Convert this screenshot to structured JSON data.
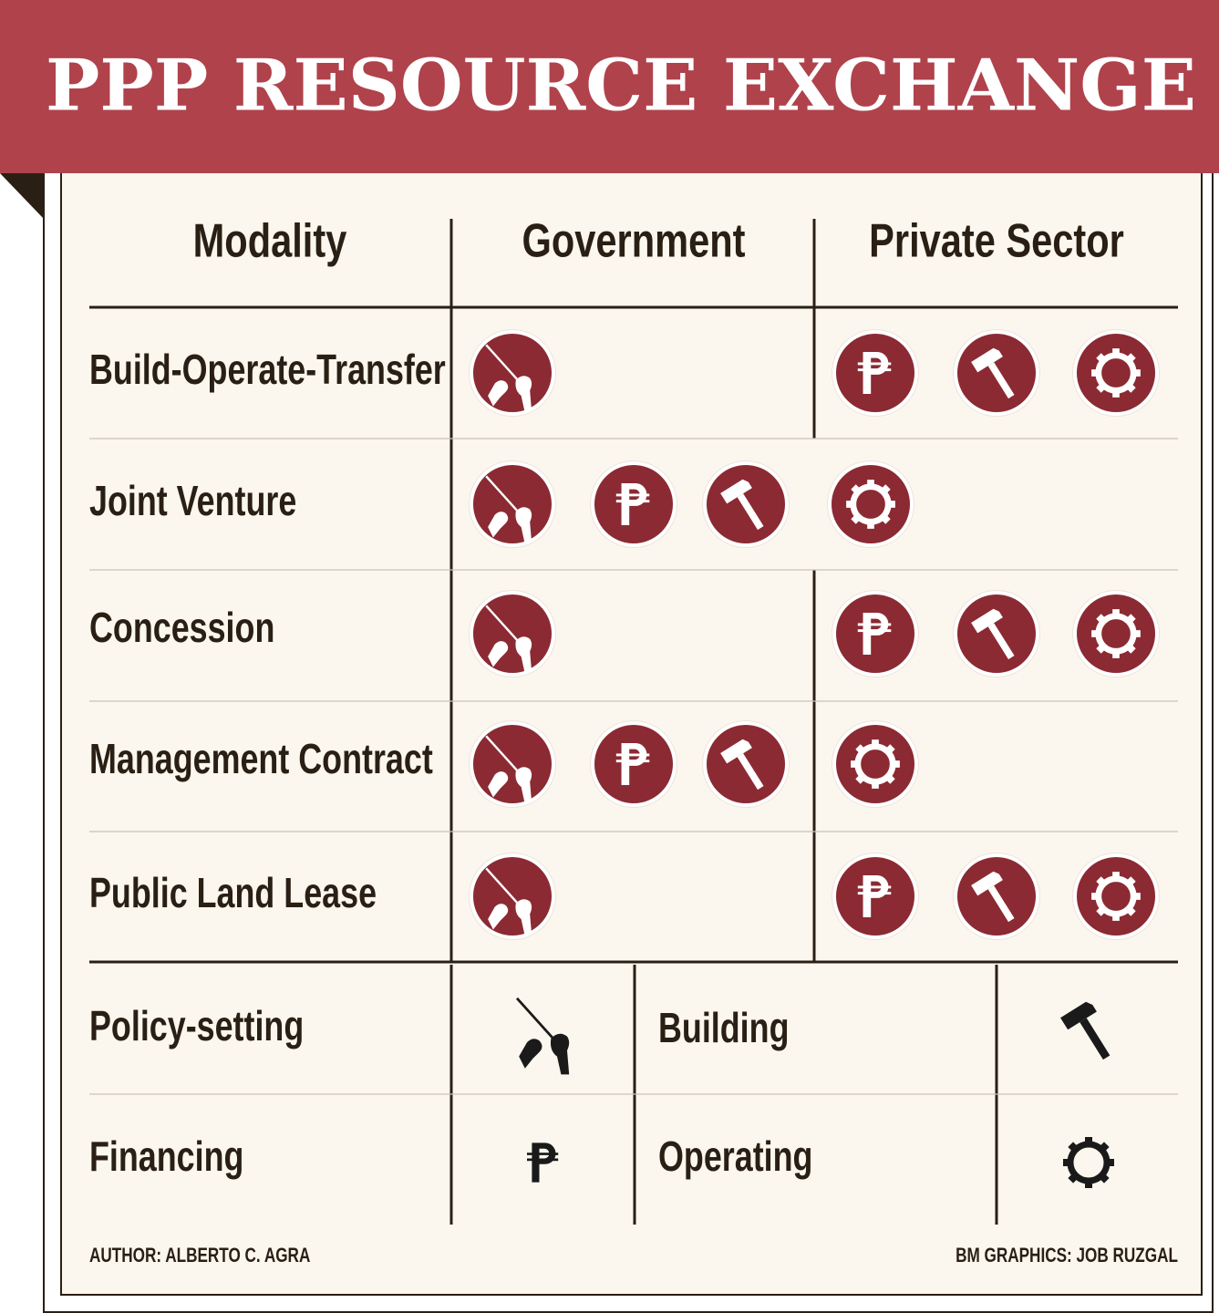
{
  "header": {
    "title": "PPP RESOURCE EXCHANGE"
  },
  "table": {
    "columns": [
      "Modality",
      "Government",
      "Private Sector"
    ],
    "rows": [
      "Build-Operate-Transfer",
      "Joint Venture",
      "Concession",
      "Management Contract",
      "Public Land Lease"
    ]
  },
  "legend": [
    "Policy-setting",
    "Building",
    "Financing",
    "Operating"
  ],
  "footer": {
    "author": "AUTHOR: ALBERTO C. AGRA",
    "credit": "BM GRAPHICS: JOB RUZGAL"
  }
}
